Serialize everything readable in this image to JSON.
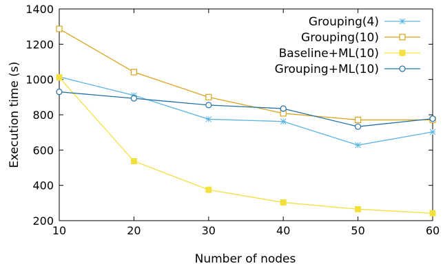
{
  "chart_data": {
    "type": "line",
    "xlabel": "Number of nodes",
    "ylabel": "Execution time (s)",
    "xlim": [
      10,
      60
    ],
    "ylim": [
      200,
      1400
    ],
    "x_ticks": [
      10,
      20,
      30,
      40,
      50,
      60
    ],
    "y_ticks": [
      200,
      400,
      600,
      800,
      1000,
      1200,
      1400
    ],
    "grid": false,
    "legend_position": "top-right",
    "x": [
      10,
      20,
      30,
      40,
      50,
      60
    ],
    "series": [
      {
        "name": "Grouping(4)",
        "color": "#5ab4e0",
        "marker": "asterisk",
        "values": [
          1015,
          910,
          775,
          762,
          628,
          703
        ]
      },
      {
        "name": "Grouping(10)",
        "color": "#d9a31c",
        "marker": "open-square",
        "values": [
          1287,
          1042,
          900,
          808,
          771,
          771
        ]
      },
      {
        "name": "Baseline+ML(10)",
        "color": "#f2e03e",
        "marker": "filled-square",
        "values": [
          1012,
          537,
          375,
          303,
          265,
          242
        ]
      },
      {
        "name": "Grouping+ML(10)",
        "color": "#1f6fa6",
        "marker": "open-circle",
        "values": [
          930,
          893,
          855,
          835,
          733,
          778
        ]
      }
    ]
  }
}
